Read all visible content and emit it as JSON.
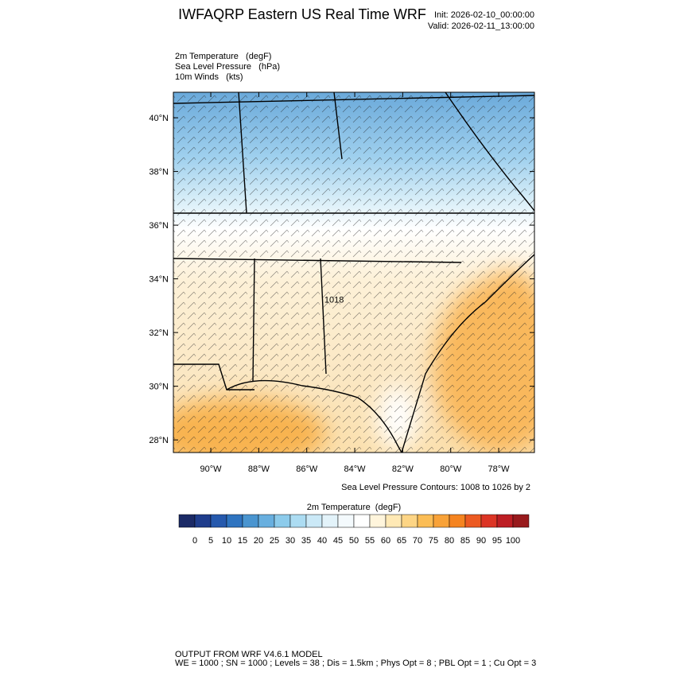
{
  "header": {
    "title": "IWFAQRP Eastern US Real Time WRF",
    "init": "Init: 2026-02-10_00:00:00",
    "valid": "Valid: 2026-02-11_13:00:00"
  },
  "fields": [
    "2m Temperature   (degF)",
    "Sea Level Pressure   (hPa)",
    "10m Winds   (kts)"
  ],
  "map": {
    "lat_range": [
      27.53,
      40.95
    ],
    "lon_range": [
      -91.56,
      -76.51
    ],
    "lat_ticks": [
      {
        "value": 40,
        "label": "40°N"
      },
      {
        "value": 38,
        "label": "38°N"
      },
      {
        "value": 36,
        "label": "36°N"
      },
      {
        "value": 34,
        "label": "34°N"
      },
      {
        "value": 32,
        "label": "32°N"
      },
      {
        "value": 30,
        "label": "30°N"
      },
      {
        "value": 28,
        "label": "28°N"
      }
    ],
    "lon_ticks": [
      {
        "value": -90,
        "label": "90°W"
      },
      {
        "value": -88,
        "label": "88°W"
      },
      {
        "value": -86,
        "label": "86°W"
      },
      {
        "value": -84,
        "label": "84°W"
      },
      {
        "value": -82,
        "label": "82°W"
      },
      {
        "value": -80,
        "label": "80°W"
      },
      {
        "value": -78,
        "label": "78°W"
      }
    ],
    "contour_labels": [
      {
        "text": "1018",
        "lat": 33.24,
        "lon": -84.86
      }
    ]
  },
  "contour_note": "Sea Level Pressure Contours: 1008 to 1026 by 2",
  "colorbar": {
    "title": "2m Temperature  (degF)",
    "levels": [
      0,
      5,
      10,
      15,
      20,
      25,
      30,
      35,
      40,
      45,
      50,
      55,
      60,
      65,
      70,
      75,
      80,
      85,
      90,
      95,
      100
    ],
    "colors": [
      "#1b2a66",
      "#1f3d8c",
      "#2659ad",
      "#2f74c0",
      "#4a95d0",
      "#68afdf",
      "#8ccbeb",
      "#acdcf2",
      "#cbe9f7",
      "#e3f3fa",
      "#f4fafd",
      "#ffffff",
      "#fff5dc",
      "#ffe9b5",
      "#fdd585",
      "#fbbd55",
      "#f8a238",
      "#f58420",
      "#ec5a22",
      "#dc3525",
      "#bd1e24",
      "#981a1d"
    ]
  },
  "footer": [
    "OUTPUT FROM WRF V4.6.1 MODEL",
    "WE = 1000 ; SN = 1000 ; Levels = 38 ; Dis = 1.5km ; Phys Opt = 8 ; PBL Opt = 1 ; Cu Opt = 3"
  ]
}
